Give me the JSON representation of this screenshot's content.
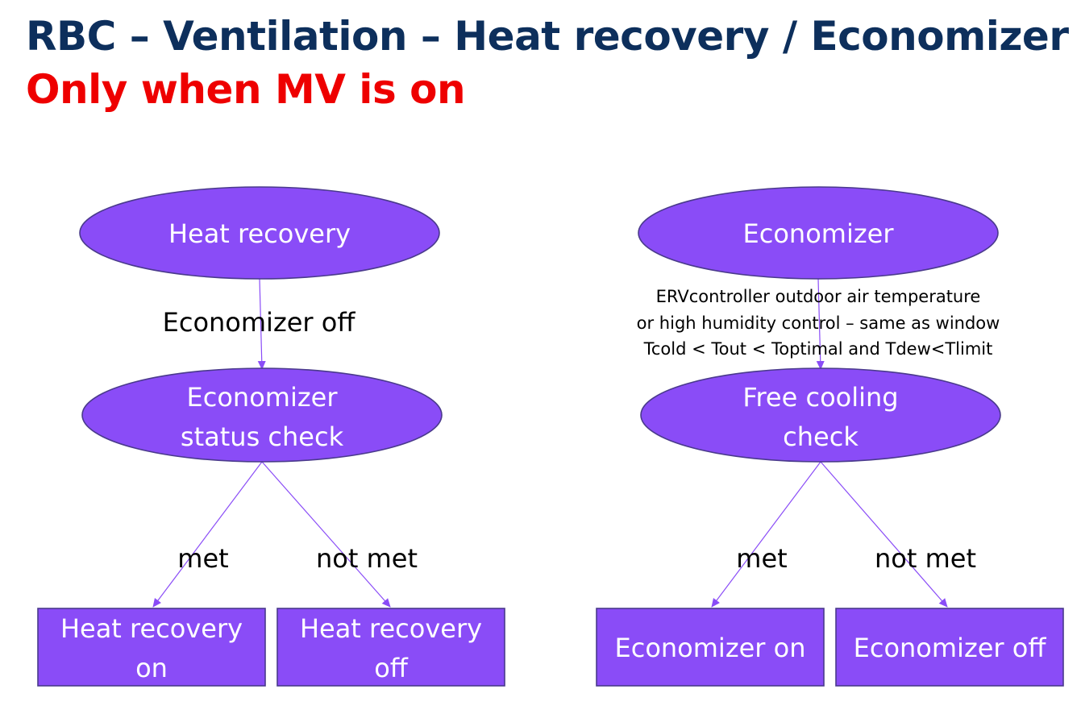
{
  "title": "RBC – Ventilation – Heat recovery / Economizer",
  "subtitle": "Only when MV is on",
  "colors": {
    "title": "#0d2f5c",
    "subtitle": "#ee0000",
    "node_fill": "#8a4cf7",
    "node_stroke": "#4a3a8c",
    "edge": "#8a4cf7"
  },
  "heat_recovery": {
    "root": "Heat recovery",
    "edge_label": "Economizer off",
    "check": [
      "Economizer",
      "status check"
    ],
    "met_label": "met",
    "not_met_label": "not met",
    "outcome_met": [
      "Heat recovery",
      "on"
    ],
    "outcome_not_met": [
      "Heat recovery",
      "off"
    ]
  },
  "economizer": {
    "root": "Economizer",
    "condition": [
      "ERVcontroller outdoor air temperature",
      "or high humidity control – same as window",
      "Tcold < Tout < Toptimal and Tdew<Tlimit"
    ],
    "check": [
      "Free cooling",
      "check"
    ],
    "met_label": "met",
    "not_met_label": "not met",
    "outcome_met": "Economizer on",
    "outcome_not_met": "Economizer off"
  }
}
